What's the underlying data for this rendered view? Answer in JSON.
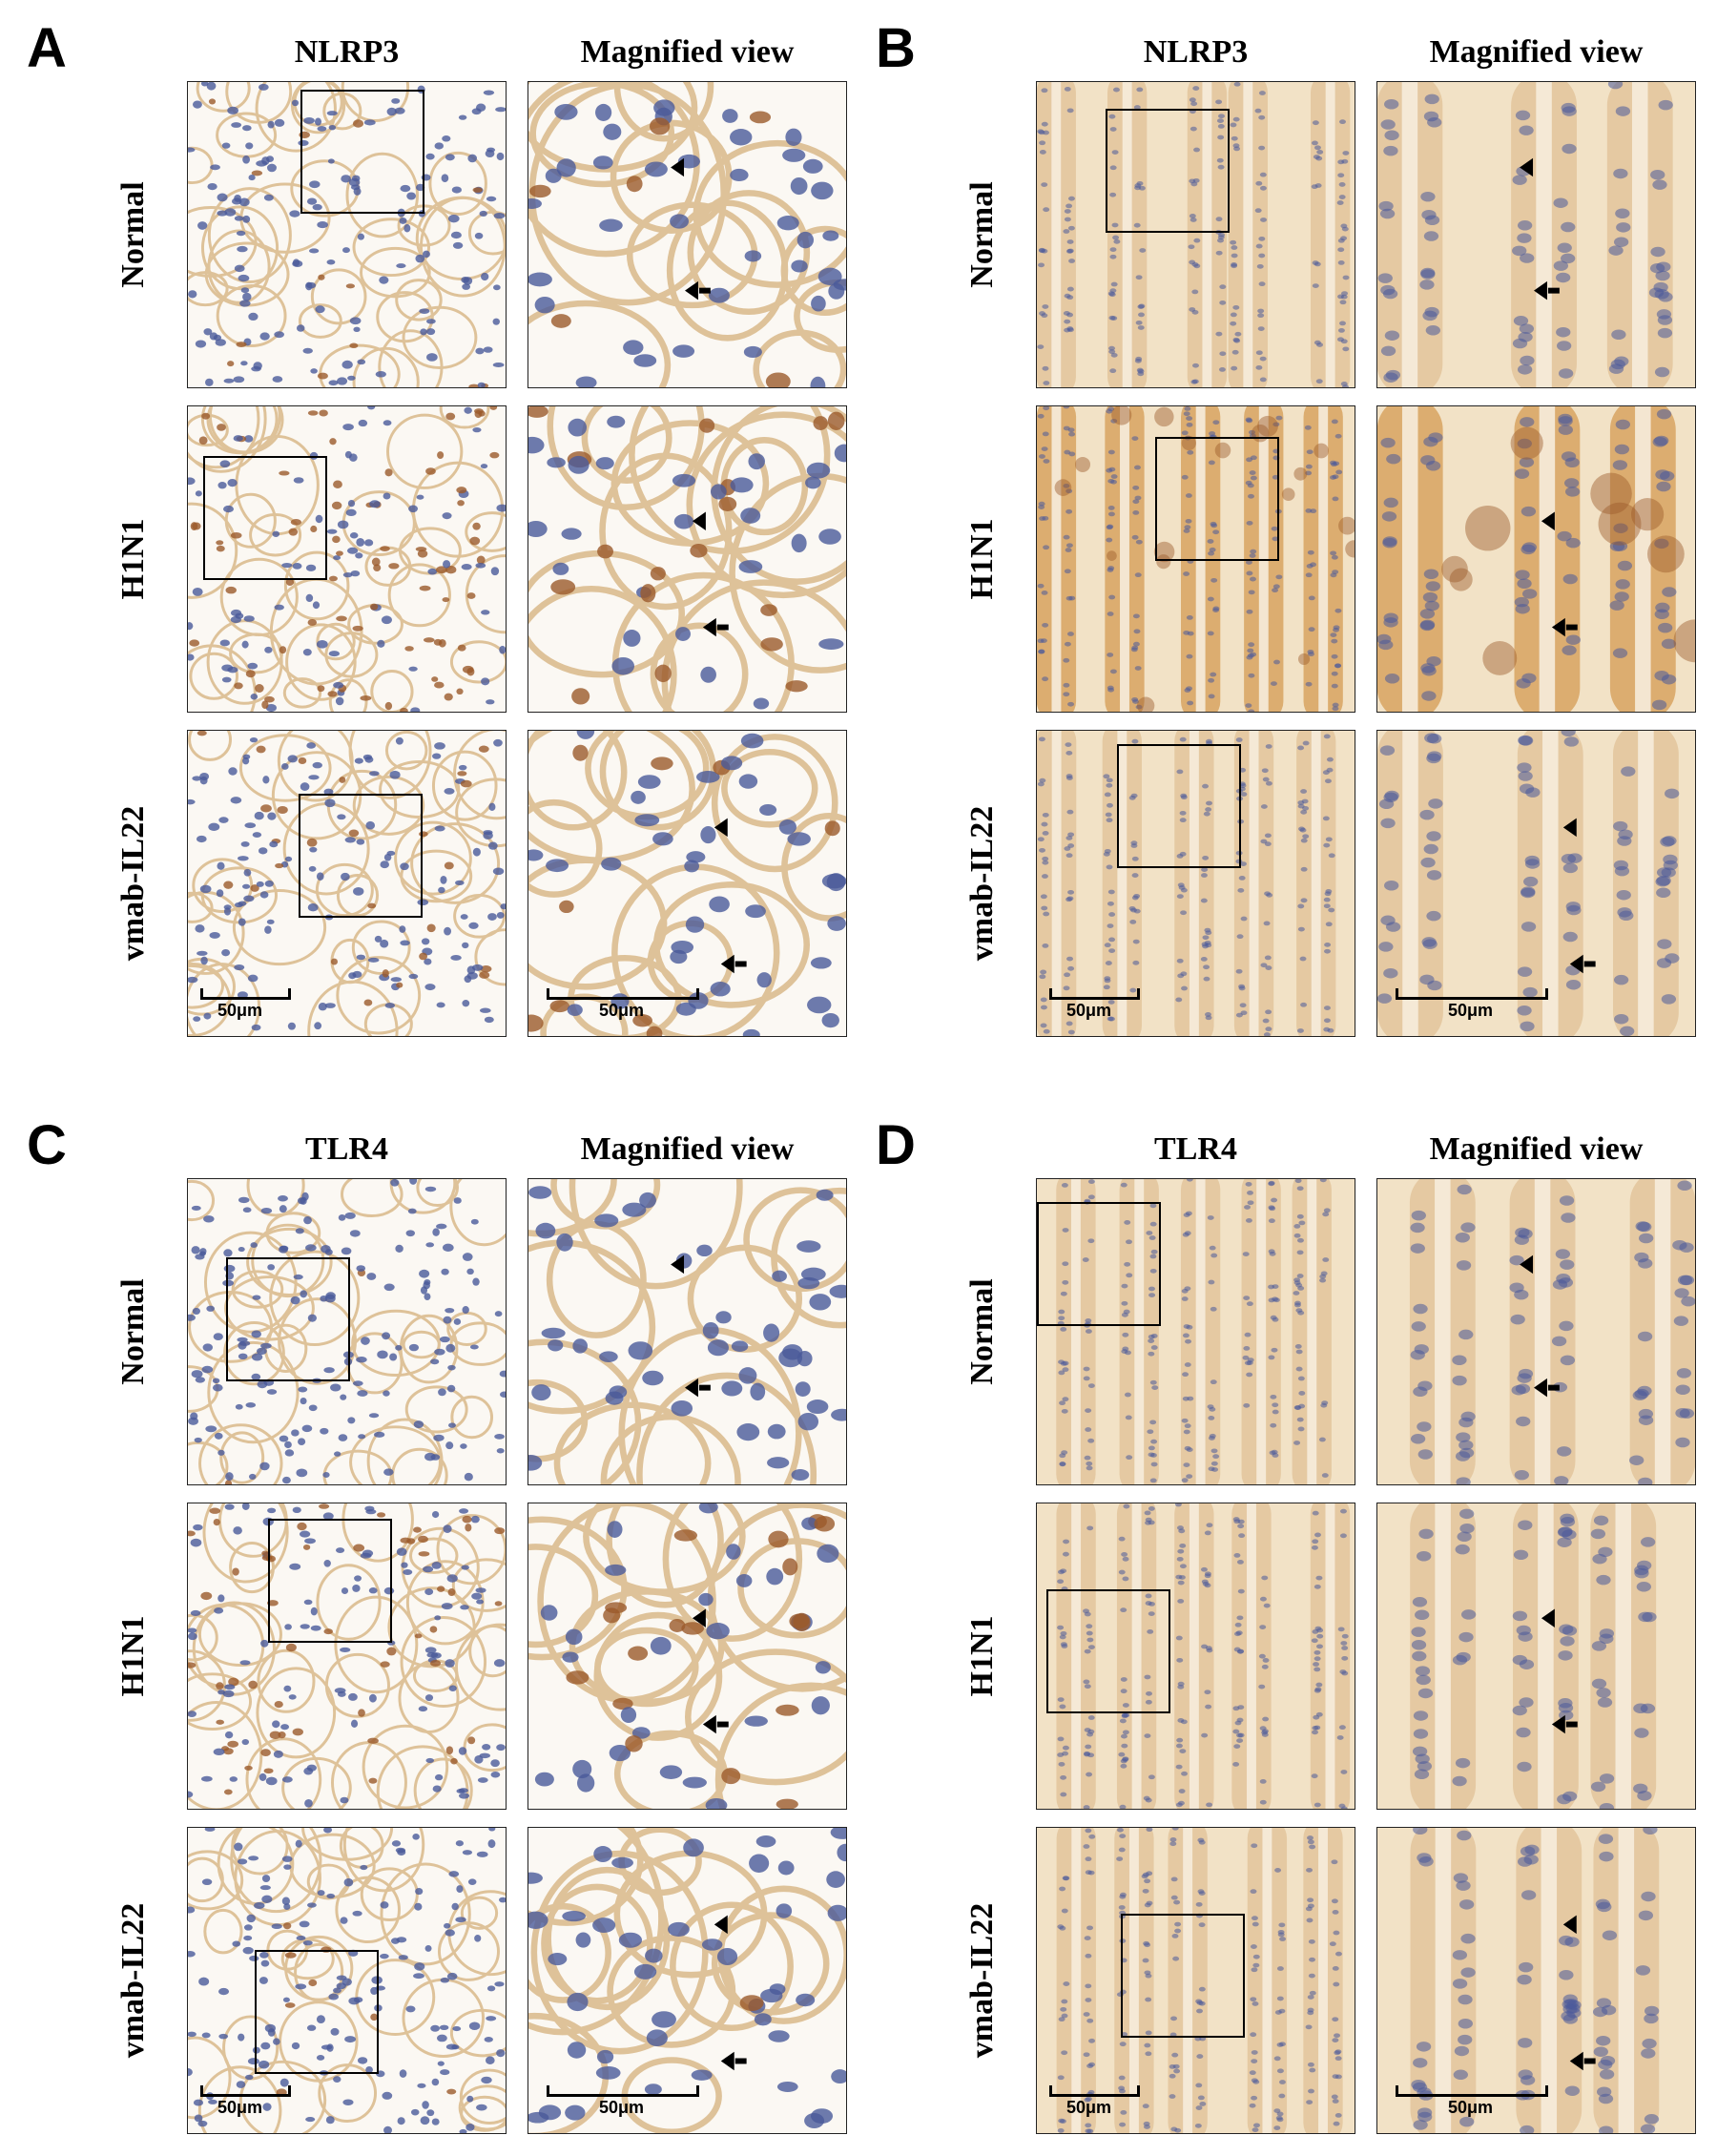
{
  "panels": [
    {
      "letter": "A",
      "col_left": "NLRP3",
      "col_right": "Magnified view",
      "rows": [
        "Normal",
        "H1N1",
        "vmab-IL22"
      ],
      "scale_left": "50μm",
      "scale_right": "50μm"
    },
    {
      "letter": "B",
      "col_left": "NLRP3",
      "col_right": "Magnified view",
      "rows": [
        "Normal",
        "H1N1",
        "vmab-IL22"
      ],
      "scale_left": "50μm",
      "scale_right": "50μm"
    },
    {
      "letter": "C",
      "col_left": "TLR4",
      "col_right": "Magnified view",
      "rows": [
        "Normal",
        "H1N1",
        "vmab-IL22"
      ],
      "scale_left": "50μm",
      "scale_right": "50μm"
    },
    {
      "letter": "D",
      "col_left": "TLR4",
      "col_right": "Magnified view",
      "rows": [
        "Normal",
        "H1N1",
        "vmab-IL22"
      ],
      "scale_left": "50μm",
      "scale_right": "50μm"
    }
  ],
  "colors": {
    "background": "#ffffff",
    "lung_bg": "#f7f1e8",
    "intestine_bg": "#e9cfa6",
    "nucleus_blue": "#4a5a9a",
    "dab_brown": "#9b5a2a",
    "stroma_tan": "#d9b98a",
    "arrow": "#000000"
  }
}
